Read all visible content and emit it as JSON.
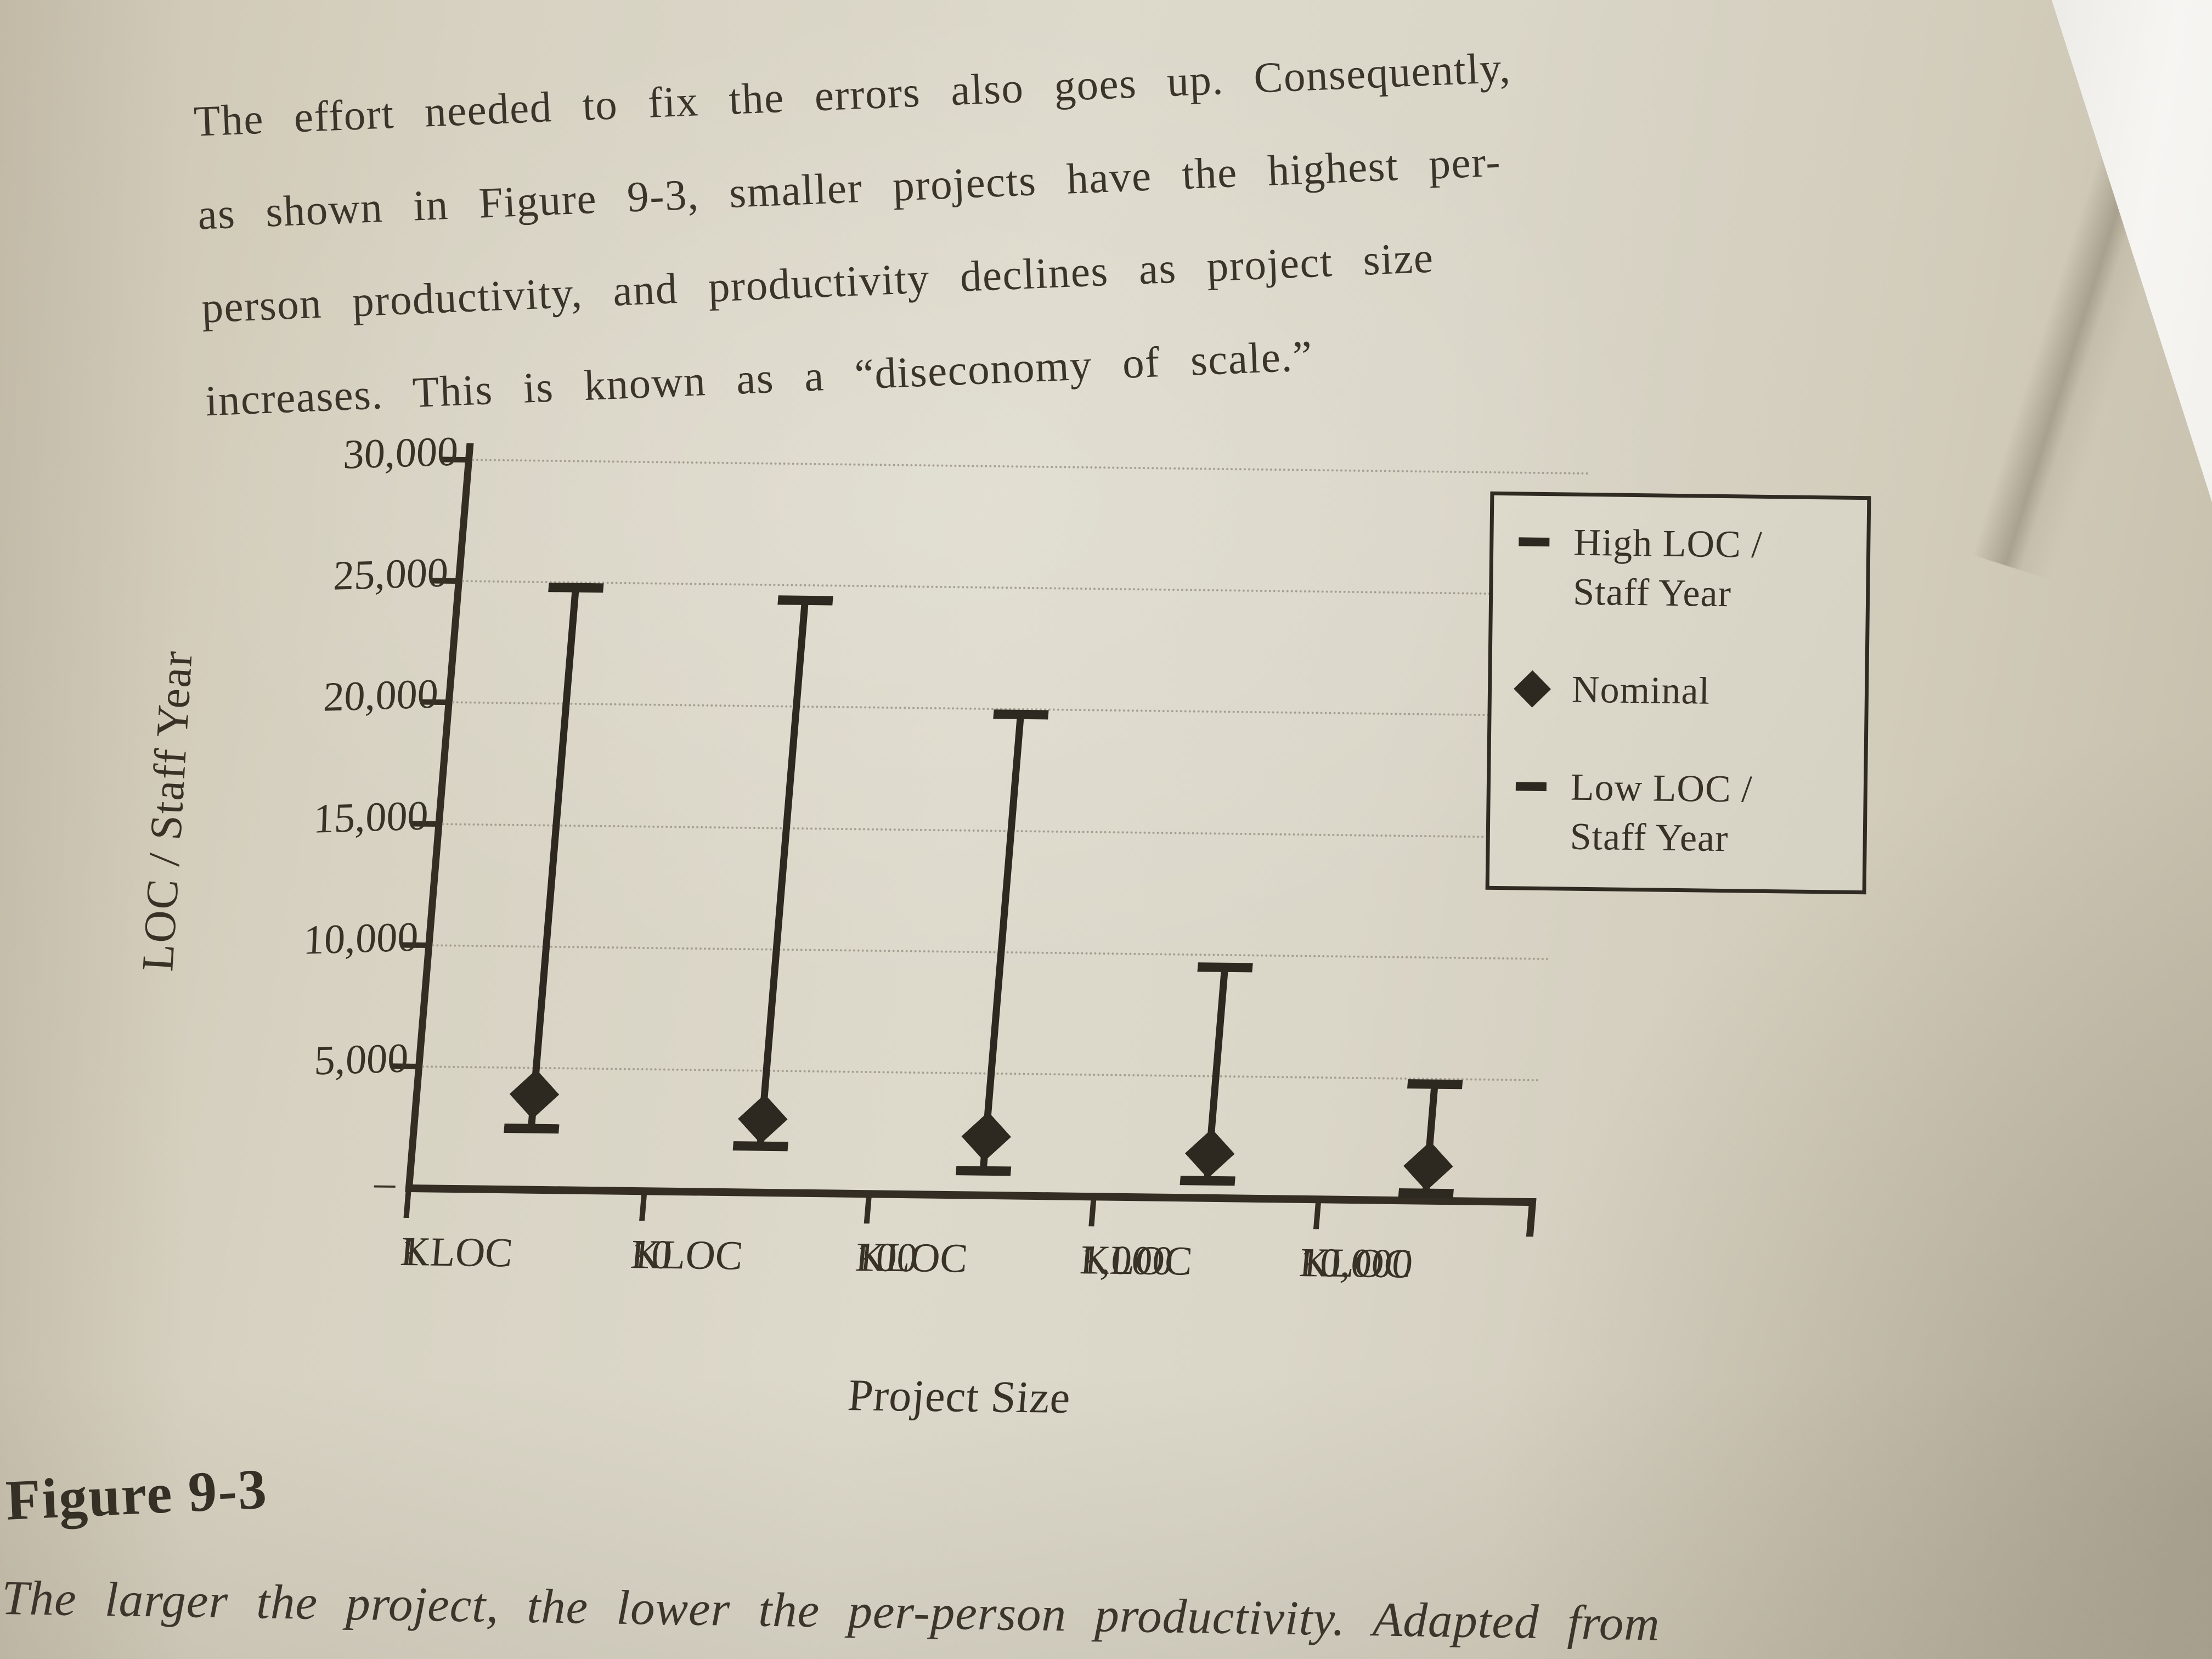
{
  "page": {
    "paragraph_lines": [
      "The effort needed to fix the errors also goes up. Consequently,",
      "as shown in Figure 9-3, smaller projects have the highest per-",
      "person productivity, and productivity declines as project size",
      "increases. This is known as a “diseconomy of scale.”"
    ],
    "figure_label": "Figure 9-3",
    "figure_caption": "The larger the project, the lower the per-person productivity. Adapted from"
  },
  "chart_data": {
    "type": "hilo",
    "title": "",
    "xlabel": "Project Size",
    "ylabel": "LOC / Staff Year",
    "categories": [
      "1 KLOC",
      "10 KLOC",
      "100 KLOC",
      "1,000 KLOC",
      "10,000 KLOC"
    ],
    "series": [
      {
        "name": "High LOC / Staff Year",
        "marker": "dash",
        "values": [
          24800,
          24400,
          19800,
          9500,
          4800
        ]
      },
      {
        "name": "Nominal",
        "marker": "diamond",
        "values": [
          3900,
          3000,
          2400,
          1800,
          1400
        ]
      },
      {
        "name": "Low LOC / Staff Year",
        "marker": "dash",
        "values": [
          2500,
          1900,
          1000,
          700,
          300
        ]
      }
    ],
    "ylim": [
      0,
      30000
    ],
    "yticks": [
      {
        "value": 30000,
        "label": "30,000"
      },
      {
        "value": 25000,
        "label": "25,000"
      },
      {
        "value": 20000,
        "label": "20,000"
      },
      {
        "value": 15000,
        "label": "15,000"
      },
      {
        "value": 10000,
        "label": "10,000"
      },
      {
        "value": 5000,
        "label": "5,000"
      },
      {
        "value": 0,
        "label": "–"
      }
    ],
    "grid": true,
    "legend_position": "upper right",
    "legend_entries": [
      {
        "marker": "dash",
        "lines": [
          "High LOC /",
          "Staff Year"
        ]
      },
      {
        "marker": "diamond",
        "lines": [
          "Nominal"
        ]
      },
      {
        "marker": "dash",
        "lines": [
          "Low LOC /",
          "Staff Year"
        ]
      }
    ]
  },
  "colors": {
    "paper": "#d7d2c2",
    "ink": "#3a3329",
    "chart_ink": "#2d2820",
    "gridline": "#9c9587",
    "next_page": "#f4f3f0"
  }
}
